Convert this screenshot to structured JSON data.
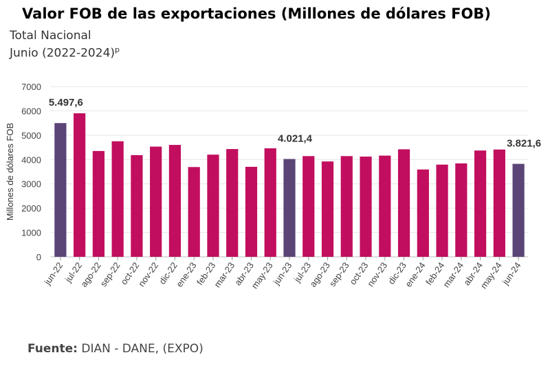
{
  "title": "Valor FOB de las exportaciones (Millones de dólares FOB)",
  "subtitle_line1": "Total Nacional",
  "subtitle_line2": "Junio (2022-2024)",
  "subtitle_sup": "p",
  "source_label": "Fuente:",
  "source_text": " DIAN - DANE, (EXPO)",
  "colors": {
    "highlight": "#5b4577",
    "normal": "#c20e5f"
  },
  "chart_data": {
    "type": "bar",
    "ylabel": "Millones de dólares FOB",
    "ylim": [
      0,
      7000
    ],
    "yticks": [
      0,
      1000,
      2000,
      3000,
      4000,
      5000,
      6000,
      7000
    ],
    "categories": [
      "jun-22",
      "jul-22",
      "ago-22",
      "sep-22",
      "oct-22",
      "nov-22",
      "dic-22",
      "ene-23",
      "feb-23",
      "mar-23",
      "abr-23",
      "may-23",
      "jun-23",
      "jul-23",
      "ago-23",
      "sep-23",
      "oct-23",
      "nov-23",
      "dic-23",
      "ene-24",
      "feb-24",
      "mar-24",
      "abr-24",
      "may-24",
      "jun-24"
    ],
    "values": [
      5497.6,
      5900,
      4350,
      4750,
      4180,
      4530,
      4600,
      3690,
      4200,
      4430,
      3700,
      4460,
      4021.4,
      4140,
      3920,
      4140,
      4120,
      4160,
      4420,
      3590,
      3790,
      3840,
      4370,
      4410,
      3821.6
    ],
    "highlighted": [
      "jun-22",
      "jun-23",
      "jun-24"
    ],
    "data_labels": [
      {
        "category": "jun-22",
        "text": "5.497,6"
      },
      {
        "category": "jun-23",
        "text": "4.021,4"
      },
      {
        "category": "jun-24",
        "text": "3.821,6"
      }
    ]
  }
}
